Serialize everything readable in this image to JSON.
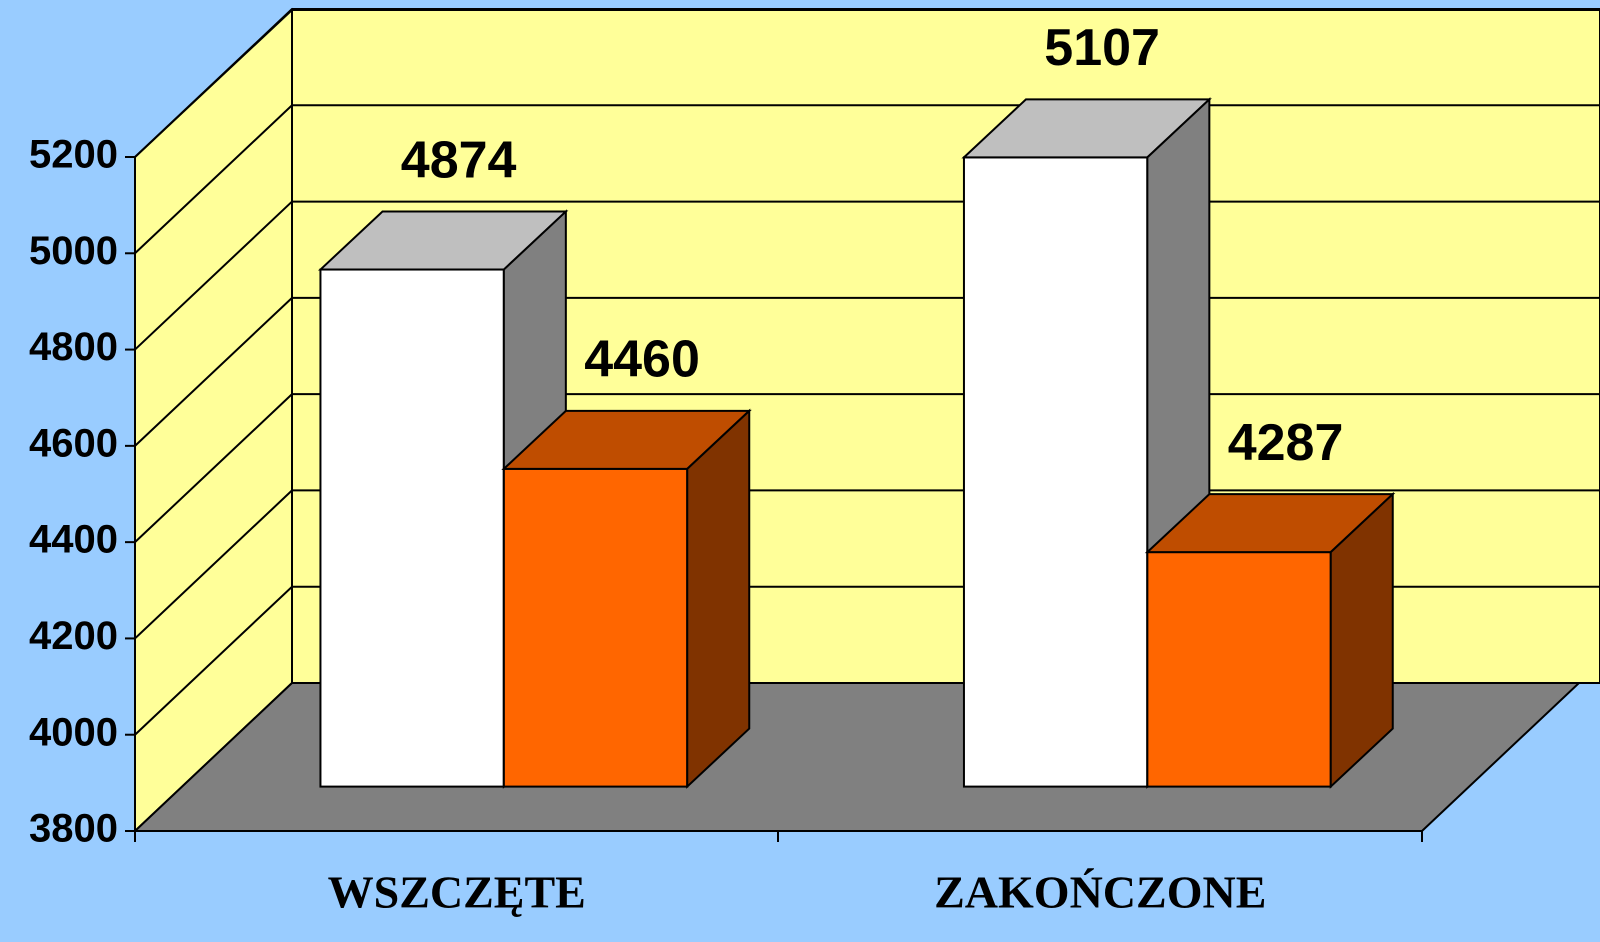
{
  "chart_data": {
    "type": "bar3d",
    "categories": [
      "WSZCZĘTE",
      "ZAKOŃCZONE"
    ],
    "series": [
      {
        "color": "#ffffff",
        "values": [
          4874,
          5107
        ]
      },
      {
        "color": "#ff6600",
        "values": [
          4460,
          4287
        ]
      }
    ],
    "ylim": [
      3800,
      5200
    ],
    "yticks": [
      3800,
      4000,
      4200,
      4400,
      4600,
      4800,
      5000,
      5200
    ],
    "grid": true
  }
}
